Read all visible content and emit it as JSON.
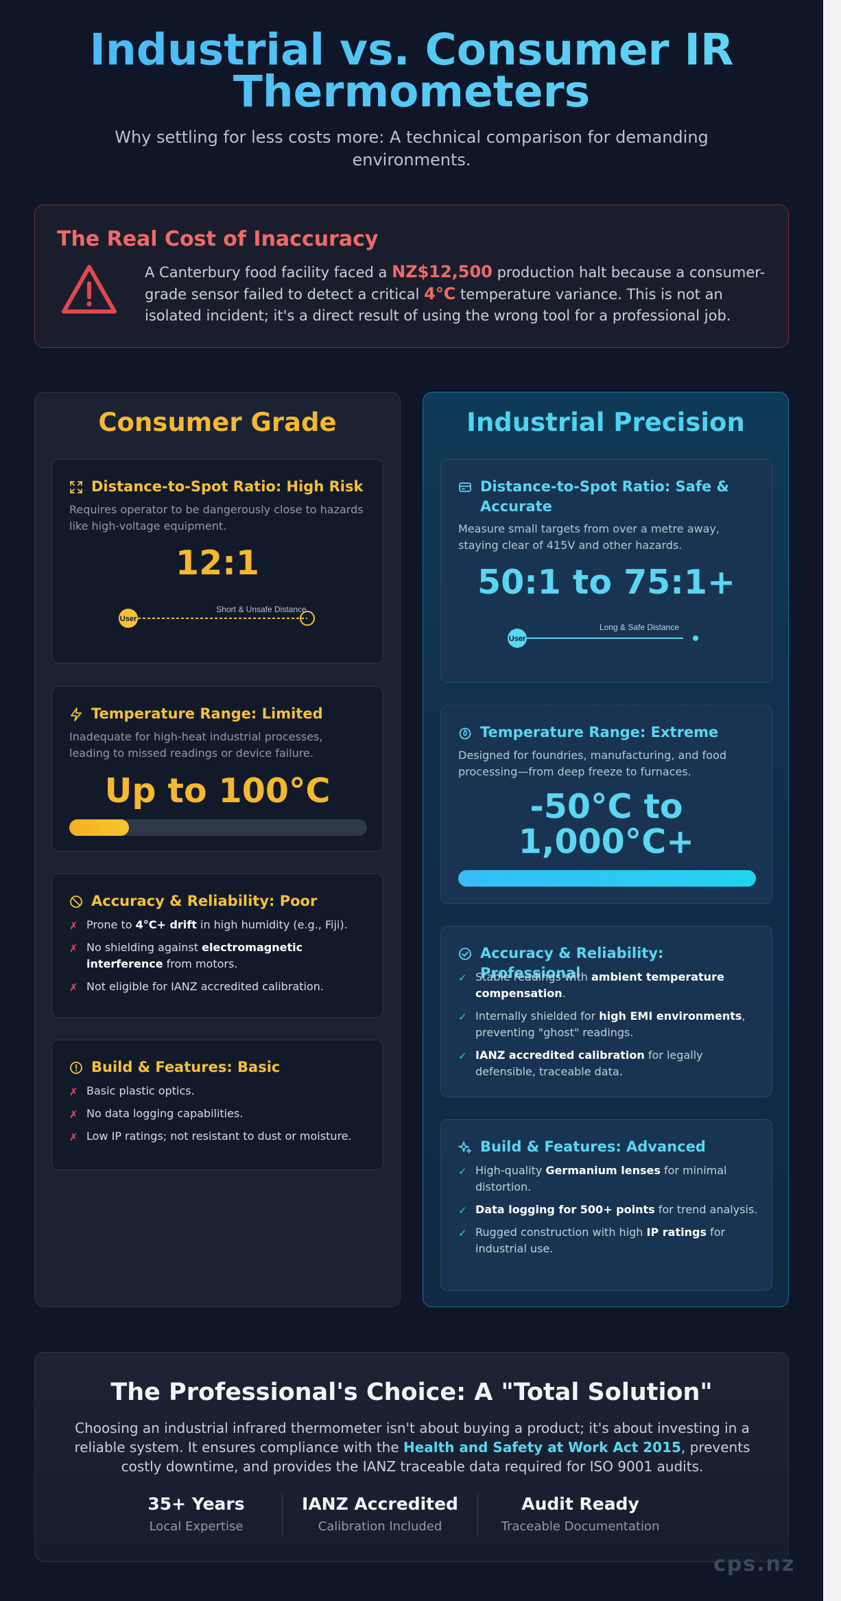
{
  "header": {
    "title": "Industrial vs. Consumer IR Thermometers",
    "subtitle": "Why settling for less costs more: A technical comparison for demanding environments."
  },
  "alert": {
    "title": "The Real Cost of Inaccuracy",
    "text_1": "A Canterbury food facility faced a ",
    "highlight_cost": "NZ$12,500",
    "text_2": " production halt because a consumer-grade sensor failed to detect a critical ",
    "highlight_temp": "4°C",
    "text_3": " temperature variance. This is not an isolated incident; it's a direct result of using the wrong tool for a professional job.",
    "icon": "warning-triangle-icon"
  },
  "consumer": {
    "title": "Consumer Grade",
    "accent": "#f5b82e",
    "distance": {
      "heading": "Distance-to-Spot Ratio: High Risk",
      "desc": "Requires operator to be dangerously close to hazards like high-voltage equipment.",
      "value": "12:1",
      "user_label": "User",
      "distance_label": "Short & Unsafe Distance",
      "icon": "expand-icon"
    },
    "temperature": {
      "heading": "Temperature Range: Limited",
      "desc": "Inadequate for high-heat industrial processes, leading to missed readings or device failure.",
      "value": "Up to 100°C",
      "range_fill": 0.2,
      "icon": "lightning-icon"
    },
    "accuracy": {
      "heading": "Accuracy & Reliability: Poor",
      "icon": "prohibited-icon",
      "items": [
        {
          "pre": "Prone to ",
          "bold": "4°C+ drift",
          "post": " in high humidity (e.g., Fiji)."
        },
        {
          "pre": "No shielding against ",
          "bold": "electromagnetic interference",
          "post": " from motors."
        },
        {
          "pre": "Not eligible for IANZ accredited calibration.",
          "bold": "",
          "post": ""
        }
      ]
    },
    "build": {
      "heading": "Build & Features: Basic",
      "icon": "alert-circle-icon",
      "items": [
        {
          "pre": "Basic plastic optics.",
          "bold": "",
          "post": ""
        },
        {
          "pre": "No data logging capabilities.",
          "bold": "",
          "post": ""
        },
        {
          "pre": "Low IP ratings; not resistant to dust or moisture.",
          "bold": "",
          "post": ""
        }
      ]
    },
    "mark": "✗"
  },
  "industrial": {
    "title": "Industrial Precision",
    "accent": "#5ad6f2",
    "distance": {
      "heading": "Distance-to-Spot Ratio: Safe & Accurate",
      "desc": "Measure small targets from over a metre away, staying clear of 415V and other hazards.",
      "value": "50:1 to 75:1+",
      "user_label": "User",
      "distance_label": "Long & Safe Distance",
      "icon": "id-card-icon"
    },
    "temperature": {
      "heading": "Temperature Range: Extreme",
      "desc": "Designed for foundries, manufacturing, and food processing—from deep freeze to furnaces.",
      "value_line1": "-50°C to",
      "value_line2": "1,000°C+",
      "range_fill": 1.0,
      "icon": "flame-icon"
    },
    "accuracy": {
      "heading": "Accuracy & Reliability: Professional",
      "icon": "check-circle-icon",
      "items": [
        {
          "pre": "Stable readings with ",
          "bold": "ambient temperature compensation",
          "post": "."
        },
        {
          "pre": "Internally shielded for ",
          "bold": "high EMI environments",
          "post": ", preventing \"ghost\" readings."
        },
        {
          "pre": "",
          "bold": "IANZ accredited calibration",
          "post": " for legally defensible, traceable data."
        }
      ]
    },
    "build": {
      "heading": "Build & Features: Advanced",
      "icon": "sparkles-icon",
      "items": [
        {
          "pre": "High-quality ",
          "bold": "Germanium lenses",
          "post": " for minimal distortion."
        },
        {
          "pre": "",
          "bold": "Data logging for 500+ points",
          "post": " for trend analysis."
        },
        {
          "pre": "Rugged construction with high ",
          "bold": "IP ratings",
          "post": " for industrial use."
        }
      ]
    },
    "mark": "✓"
  },
  "summary": {
    "title": "The Professional's Choice: A \"Total Solution\"",
    "text_1": "Choosing an industrial infrared thermometer isn't about buying a product; it's about investing in a reliable system. It ensures compliance with the ",
    "link": "Health and Safety at Work Act 2015",
    "text_2": ", prevents costly downtime, and provides the IANZ traceable data required for ISO 9001 audits.",
    "stats": [
      {
        "value": "35+ Years",
        "label": "Local Expertise"
      },
      {
        "value": "IANZ Accredited",
        "label": "Calibration Included"
      },
      {
        "value": "Audit Ready",
        "label": "Traceable Documentation"
      }
    ]
  },
  "footer": {
    "brand": "cps.nz"
  }
}
